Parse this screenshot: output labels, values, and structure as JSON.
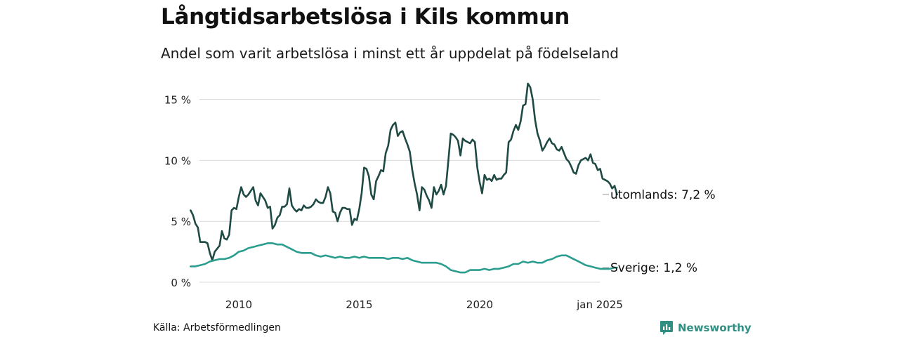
{
  "header": {
    "title": "Långtidsarbetslösa i Kils kommun",
    "subtitle": "Andel som varit arbetslösa i minst ett år uppdelat på födelseland"
  },
  "footer": {
    "source": "Källa: Arbetsförmedlingen",
    "brand": "Newsworthy"
  },
  "colors": {
    "utomlands": "#1f4a44",
    "sverige": "#2a9d8f",
    "grid": "#d9d9d9",
    "brand": "#2f8f83"
  },
  "chart_data": {
    "type": "line",
    "title": "Långtidsarbetslösa i Kils kommun",
    "subtitle": "Andel som varit arbetslösa i minst ett år uppdelat på födelseland",
    "xlabel": "",
    "ylabel": "",
    "xlim": [
      2008.0,
      2025.0
    ],
    "ylim": [
      0,
      16.5
    ],
    "grid": true,
    "y_ticks": [
      0,
      5,
      10,
      15
    ],
    "y_tick_labels": [
      "0 %",
      "5 %",
      "10 %",
      "15 %"
    ],
    "x_ticks": [
      2010,
      2015,
      2020,
      2025
    ],
    "x_tick_labels": [
      "2010",
      "2015",
      "2020",
      "jan 2025"
    ],
    "series": [
      {
        "name": "utomlands",
        "end_label": "utomlands: 7,2 %",
        "points": [
          [
            2008.0,
            5.9
          ],
          [
            2008.1,
            5.5
          ],
          [
            2008.2,
            4.8
          ],
          [
            2008.3,
            4.5
          ],
          [
            2008.4,
            3.3
          ],
          [
            2008.5,
            3.3
          ],
          [
            2008.6,
            3.3
          ],
          [
            2008.7,
            3.2
          ],
          [
            2008.8,
            2.4
          ],
          [
            2008.9,
            1.8
          ],
          [
            2009.0,
            2.5
          ],
          [
            2009.2,
            3.0
          ],
          [
            2009.3,
            4.2
          ],
          [
            2009.4,
            3.6
          ],
          [
            2009.5,
            3.5
          ],
          [
            2009.6,
            3.9
          ],
          [
            2009.7,
            5.9
          ],
          [
            2009.8,
            6.1
          ],
          [
            2009.9,
            6.0
          ],
          [
            2010.0,
            7.0
          ],
          [
            2010.1,
            7.8
          ],
          [
            2010.2,
            7.2
          ],
          [
            2010.3,
            7.0
          ],
          [
            2010.4,
            7.2
          ],
          [
            2010.5,
            7.5
          ],
          [
            2010.6,
            7.8
          ],
          [
            2010.7,
            6.7
          ],
          [
            2010.8,
            6.3
          ],
          [
            2010.9,
            7.3
          ],
          [
            2011.0,
            7.0
          ],
          [
            2011.1,
            6.7
          ],
          [
            2011.2,
            6.1
          ],
          [
            2011.3,
            6.2
          ],
          [
            2011.4,
            4.4
          ],
          [
            2011.5,
            4.7
          ],
          [
            2011.6,
            5.3
          ],
          [
            2011.7,
            5.5
          ],
          [
            2011.8,
            6.2
          ],
          [
            2011.9,
            6.2
          ],
          [
            2012.0,
            6.4
          ],
          [
            2012.1,
            7.7
          ],
          [
            2012.2,
            6.3
          ],
          [
            2012.3,
            6.0
          ],
          [
            2012.4,
            5.8
          ],
          [
            2012.5,
            6.0
          ],
          [
            2012.6,
            5.9
          ],
          [
            2012.7,
            6.3
          ],
          [
            2012.8,
            6.1
          ],
          [
            2012.9,
            6.1
          ],
          [
            2013.0,
            6.2
          ],
          [
            2013.1,
            6.4
          ],
          [
            2013.2,
            6.8
          ],
          [
            2013.3,
            6.6
          ],
          [
            2013.4,
            6.5
          ],
          [
            2013.5,
            6.5
          ],
          [
            2013.6,
            7.0
          ],
          [
            2013.7,
            7.8
          ],
          [
            2013.8,
            7.3
          ],
          [
            2013.9,
            5.8
          ],
          [
            2014.0,
            5.7
          ],
          [
            2014.1,
            5.0
          ],
          [
            2014.2,
            5.7
          ],
          [
            2014.3,
            6.1
          ],
          [
            2014.4,
            6.1
          ],
          [
            2014.5,
            6.0
          ],
          [
            2014.6,
            6.0
          ],
          [
            2014.7,
            4.7
          ],
          [
            2014.8,
            5.2
          ],
          [
            2014.9,
            5.1
          ],
          [
            2015.0,
            6.0
          ],
          [
            2015.1,
            7.3
          ],
          [
            2015.2,
            9.4
          ],
          [
            2015.3,
            9.3
          ],
          [
            2015.4,
            8.7
          ],
          [
            2015.5,
            7.2
          ],
          [
            2015.6,
            6.8
          ],
          [
            2015.7,
            8.3
          ],
          [
            2015.8,
            8.7
          ],
          [
            2015.9,
            9.2
          ],
          [
            2016.0,
            9.1
          ],
          [
            2016.1,
            10.6
          ],
          [
            2016.2,
            11.2
          ],
          [
            2016.3,
            12.5
          ],
          [
            2016.4,
            12.9
          ],
          [
            2016.5,
            13.1
          ],
          [
            2016.6,
            12.0
          ],
          [
            2016.7,
            12.3
          ],
          [
            2016.8,
            12.4
          ],
          [
            2016.9,
            11.8
          ],
          [
            2017.0,
            11.3
          ],
          [
            2017.1,
            10.7
          ],
          [
            2017.2,
            9.2
          ],
          [
            2017.3,
            8.1
          ],
          [
            2017.4,
            7.2
          ],
          [
            2017.5,
            5.9
          ],
          [
            2017.6,
            7.8
          ],
          [
            2017.7,
            7.6
          ],
          [
            2017.8,
            7.1
          ],
          [
            2017.9,
            6.7
          ],
          [
            2018.0,
            6.1
          ],
          [
            2018.1,
            7.8
          ],
          [
            2018.2,
            7.2
          ],
          [
            2018.3,
            7.5
          ],
          [
            2018.4,
            8.0
          ],
          [
            2018.5,
            7.2
          ],
          [
            2018.6,
            7.9
          ],
          [
            2018.7,
            10.0
          ],
          [
            2018.8,
            12.2
          ],
          [
            2018.9,
            12.1
          ],
          [
            2019.0,
            11.9
          ],
          [
            2019.1,
            11.6
          ],
          [
            2019.2,
            10.4
          ],
          [
            2019.3,
            11.8
          ],
          [
            2019.4,
            11.6
          ],
          [
            2019.5,
            11.5
          ],
          [
            2019.6,
            11.4
          ],
          [
            2019.7,
            11.7
          ],
          [
            2019.8,
            11.5
          ],
          [
            2019.9,
            9.4
          ],
          [
            2020.0,
            8.2
          ],
          [
            2020.1,
            7.3
          ],
          [
            2020.2,
            8.8
          ],
          [
            2020.3,
            8.4
          ],
          [
            2020.4,
            8.5
          ],
          [
            2020.5,
            8.3
          ],
          [
            2020.6,
            8.8
          ],
          [
            2020.7,
            8.4
          ],
          [
            2020.8,
            8.5
          ],
          [
            2020.9,
            8.5
          ],
          [
            2021.0,
            8.8
          ],
          [
            2021.1,
            9.0
          ],
          [
            2021.2,
            11.5
          ],
          [
            2021.3,
            11.7
          ],
          [
            2021.4,
            12.4
          ],
          [
            2021.5,
            12.9
          ],
          [
            2021.6,
            12.5
          ],
          [
            2021.7,
            13.2
          ],
          [
            2021.8,
            14.5
          ],
          [
            2021.9,
            14.6
          ],
          [
            2022.0,
            16.3
          ],
          [
            2022.1,
            16.0
          ],
          [
            2022.2,
            15.0
          ],
          [
            2022.3,
            13.3
          ],
          [
            2022.4,
            12.2
          ],
          [
            2022.5,
            11.6
          ],
          [
            2022.6,
            10.8
          ],
          [
            2022.7,
            11.1
          ],
          [
            2022.8,
            11.5
          ],
          [
            2022.9,
            11.8
          ],
          [
            2023.0,
            11.4
          ],
          [
            2023.1,
            11.3
          ],
          [
            2023.2,
            10.9
          ],
          [
            2023.3,
            10.8
          ],
          [
            2023.4,
            11.1
          ],
          [
            2023.5,
            10.6
          ],
          [
            2023.6,
            10.1
          ],
          [
            2023.7,
            9.9
          ],
          [
            2023.8,
            9.5
          ],
          [
            2023.9,
            9.0
          ],
          [
            2024.0,
            8.9
          ],
          [
            2024.1,
            9.6
          ],
          [
            2024.2,
            10.0
          ],
          [
            2024.3,
            10.1
          ],
          [
            2024.4,
            10.2
          ],
          [
            2024.5,
            10.0
          ],
          [
            2024.6,
            10.5
          ],
          [
            2024.7,
            9.8
          ],
          [
            2024.8,
            9.7
          ],
          [
            2024.9,
            9.2
          ],
          [
            2025.0,
            9.3
          ],
          [
            2025.1,
            8.5
          ],
          [
            2025.2,
            8.4
          ],
          [
            2025.3,
            8.3
          ],
          [
            2025.4,
            8.1
          ],
          [
            2025.5,
            7.7
          ],
          [
            2025.6,
            7.9
          ],
          [
            2025.7,
            7.2
          ]
        ]
      },
      {
        "name": "Sverige",
        "end_label": "Sverige: 1,2 %",
        "points": [
          [
            2008.0,
            1.3
          ],
          [
            2008.2,
            1.3
          ],
          [
            2008.4,
            1.4
          ],
          [
            2008.6,
            1.5
          ],
          [
            2008.8,
            1.7
          ],
          [
            2009.0,
            1.8
          ],
          [
            2009.2,
            1.9
          ],
          [
            2009.4,
            1.9
          ],
          [
            2009.6,
            2.0
          ],
          [
            2009.8,
            2.2
          ],
          [
            2010.0,
            2.5
          ],
          [
            2010.2,
            2.6
          ],
          [
            2010.4,
            2.8
          ],
          [
            2010.6,
            2.9
          ],
          [
            2010.8,
            3.0
          ],
          [
            2011.0,
            3.1
          ],
          [
            2011.2,
            3.2
          ],
          [
            2011.4,
            3.2
          ],
          [
            2011.6,
            3.1
          ],
          [
            2011.8,
            3.1
          ],
          [
            2012.0,
            2.9
          ],
          [
            2012.2,
            2.7
          ],
          [
            2012.4,
            2.5
          ],
          [
            2012.6,
            2.4
          ],
          [
            2012.8,
            2.4
          ],
          [
            2013.0,
            2.4
          ],
          [
            2013.2,
            2.2
          ],
          [
            2013.4,
            2.1
          ],
          [
            2013.6,
            2.2
          ],
          [
            2013.8,
            2.1
          ],
          [
            2014.0,
            2.0
          ],
          [
            2014.2,
            2.1
          ],
          [
            2014.4,
            2.0
          ],
          [
            2014.6,
            2.0
          ],
          [
            2014.8,
            2.1
          ],
          [
            2015.0,
            2.0
          ],
          [
            2015.2,
            2.1
          ],
          [
            2015.4,
            2.0
          ],
          [
            2015.6,
            2.0
          ],
          [
            2015.8,
            2.0
          ],
          [
            2016.0,
            2.0
          ],
          [
            2016.2,
            1.9
          ],
          [
            2016.4,
            2.0
          ],
          [
            2016.6,
            2.0
          ],
          [
            2016.8,
            1.9
          ],
          [
            2017.0,
            2.0
          ],
          [
            2017.2,
            1.8
          ],
          [
            2017.4,
            1.7
          ],
          [
            2017.6,
            1.6
          ],
          [
            2017.8,
            1.6
          ],
          [
            2018.0,
            1.6
          ],
          [
            2018.2,
            1.6
          ],
          [
            2018.4,
            1.5
          ],
          [
            2018.6,
            1.3
          ],
          [
            2018.8,
            1.0
          ],
          [
            2019.0,
            0.9
          ],
          [
            2019.2,
            0.8
          ],
          [
            2019.4,
            0.8
          ],
          [
            2019.6,
            1.0
          ],
          [
            2019.8,
            1.0
          ],
          [
            2020.0,
            1.0
          ],
          [
            2020.2,
            1.1
          ],
          [
            2020.4,
            1.0
          ],
          [
            2020.6,
            1.1
          ],
          [
            2020.8,
            1.1
          ],
          [
            2021.0,
            1.2
          ],
          [
            2021.2,
            1.3
          ],
          [
            2021.4,
            1.5
          ],
          [
            2021.6,
            1.5
          ],
          [
            2021.8,
            1.7
          ],
          [
            2022.0,
            1.6
          ],
          [
            2022.2,
            1.7
          ],
          [
            2022.4,
            1.6
          ],
          [
            2022.6,
            1.6
          ],
          [
            2022.8,
            1.8
          ],
          [
            2023.0,
            1.9
          ],
          [
            2023.2,
            2.1
          ],
          [
            2023.4,
            2.2
          ],
          [
            2023.6,
            2.2
          ],
          [
            2023.8,
            2.0
          ],
          [
            2024.0,
            1.8
          ],
          [
            2024.2,
            1.6
          ],
          [
            2024.4,
            1.4
          ],
          [
            2024.6,
            1.3
          ],
          [
            2024.8,
            1.2
          ],
          [
            2025.0,
            1.1
          ],
          [
            2025.2,
            1.1
          ],
          [
            2025.4,
            1.1
          ],
          [
            2025.6,
            1.2
          ],
          [
            2025.7,
            1.2
          ]
        ]
      }
    ]
  }
}
